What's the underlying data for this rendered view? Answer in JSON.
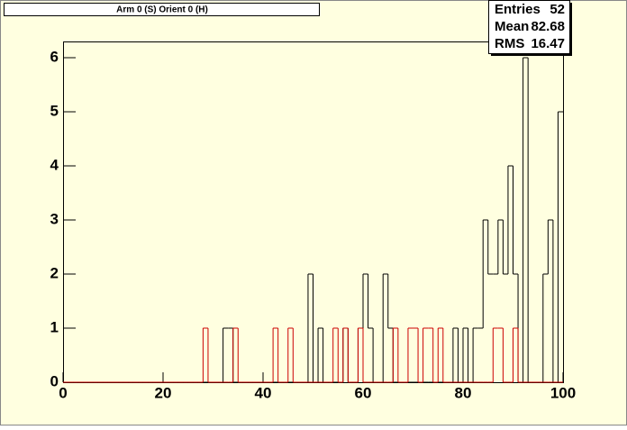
{
  "chart_data": {
    "type": "histogram",
    "title": "Arm 0 (S) Orient 0 (H)",
    "bins": [
      0,
      1,
      2,
      3,
      4,
      5,
      6,
      7,
      8,
      9,
      10,
      11,
      12,
      13,
      14,
      15,
      16,
      17,
      18,
      19,
      20,
      21,
      22,
      23,
      24,
      25,
      26,
      27,
      28,
      29,
      30,
      31,
      32,
      33,
      34,
      35,
      36,
      37,
      38,
      39,
      40,
      41,
      42,
      43,
      44,
      45,
      46,
      47,
      48,
      49,
      50,
      51,
      52,
      53,
      54,
      55,
      56,
      57,
      58,
      59,
      60,
      61,
      62,
      63,
      64,
      65,
      66,
      67,
      68,
      69,
      70,
      71,
      72,
      73,
      74,
      75,
      76,
      77,
      78,
      79,
      80,
      81,
      82,
      83,
      84,
      85,
      86,
      87,
      88,
      89,
      90,
      91,
      92,
      93,
      94,
      95,
      96,
      97,
      98,
      99,
      100
    ],
    "series": [
      {
        "color": "#000000",
        "values": [
          0,
          0,
          0,
          0,
          0,
          0,
          0,
          0,
          0,
          0,
          0,
          0,
          0,
          0,
          0,
          0,
          0,
          0,
          0,
          0,
          0,
          0,
          0,
          0,
          0,
          0,
          0,
          0,
          0,
          0,
          0,
          0,
          1,
          1,
          0,
          0,
          0,
          0,
          0,
          0,
          0,
          0,
          0,
          0,
          0,
          0,
          0,
          0,
          0,
          2,
          0,
          1,
          0,
          0,
          0,
          0,
          1,
          0,
          0,
          1,
          2,
          1,
          0,
          0,
          2,
          1,
          0,
          0,
          0,
          0,
          0,
          0,
          0,
          0,
          0,
          0,
          0,
          0,
          1,
          0,
          1,
          0,
          1,
          1,
          3,
          2,
          2,
          3,
          2,
          4,
          2,
          0,
          6,
          0,
          0,
          0,
          2,
          3,
          0,
          5
        ]
      },
      {
        "color": "#cc0000",
        "values": [
          0,
          0,
          0,
          0,
          0,
          0,
          0,
          0,
          0,
          0,
          0,
          0,
          0,
          0,
          0,
          0,
          0,
          0,
          0,
          0,
          0,
          0,
          0,
          0,
          0,
          0,
          0,
          0,
          1,
          0,
          0,
          0,
          0,
          0,
          1,
          0,
          0,
          0,
          0,
          0,
          0,
          0,
          1,
          0,
          0,
          1,
          0,
          0,
          0,
          0,
          0,
          0,
          0,
          0,
          1,
          0,
          1,
          0,
          0,
          1,
          0,
          0,
          0,
          0,
          0,
          0,
          1,
          0,
          0,
          1,
          1,
          0,
          1,
          1,
          0,
          1,
          0,
          0,
          0,
          0,
          0,
          0,
          0,
          0,
          0,
          0,
          1,
          1,
          0,
          0,
          1,
          0,
          0,
          0,
          0,
          0,
          0,
          0,
          0,
          0
        ]
      }
    ],
    "xlim": [
      0,
      100
    ],
    "xticks": [
      0,
      20,
      40,
      60,
      80,
      100
    ],
    "ylim": [
      0,
      6.3
    ],
    "yticks": [
      0,
      1,
      2,
      3,
      4,
      5,
      6
    ],
    "stats": [
      {
        "label": "Entries",
        "value": 52
      },
      {
        "label": "Mean",
        "value": 82.68
      },
      {
        "label": "RMS",
        "value": 16.47
      }
    ]
  }
}
